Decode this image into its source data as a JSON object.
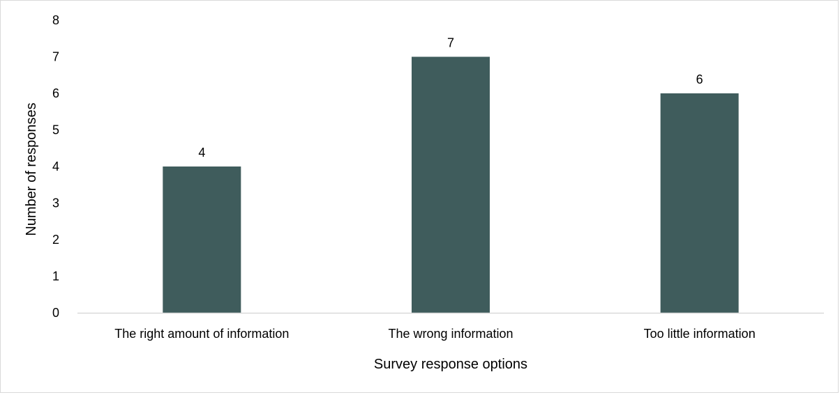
{
  "chart_data": {
    "type": "bar",
    "title": "",
    "xlabel": "Survey response options",
    "ylabel": "Number of responses",
    "categories": [
      "The right amount of information",
      "The wrong information",
      "Too little information"
    ],
    "values": [
      4,
      7,
      6
    ],
    "data_labels": [
      "4",
      "7",
      "6"
    ],
    "ylim": [
      0,
      8
    ],
    "yticks": [
      "0",
      "1",
      "2",
      "3",
      "4",
      "5",
      "6",
      "7",
      "8"
    ],
    "grid": false,
    "legend": "none",
    "bar_color": "#3f5c5c",
    "axis_color": "#d9d9d9"
  }
}
